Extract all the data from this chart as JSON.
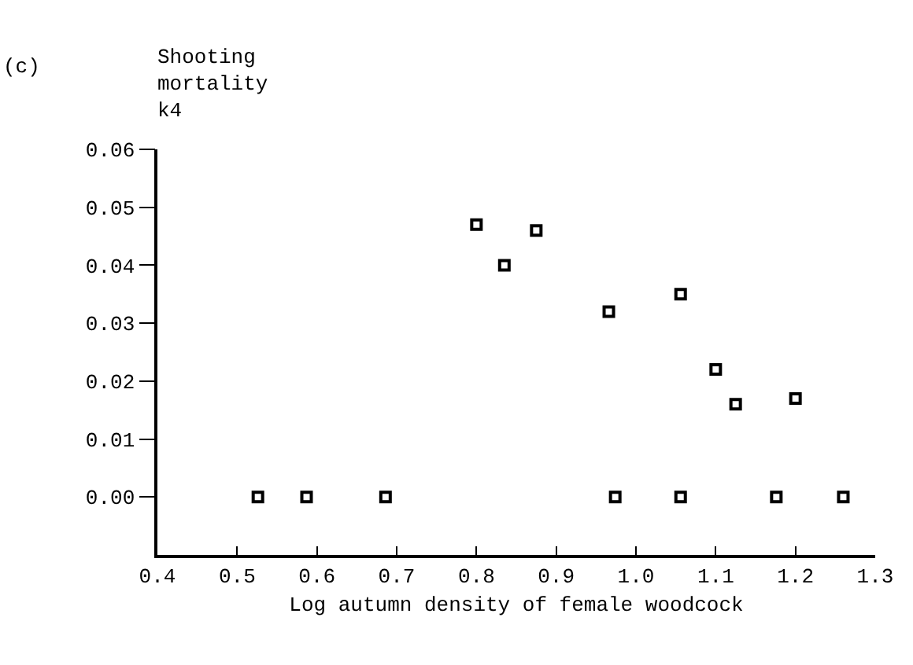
{
  "chart_data": {
    "type": "scatter",
    "title": "(c)",
    "ylabel": "Shooting mortality k4",
    "xlabel": "Log autumn density of female woodcock",
    "x": [
      0.526,
      0.587,
      0.686,
      0.8,
      0.835,
      0.875,
      0.966,
      0.974,
      1.056,
      1.056,
      1.1,
      1.125,
      1.176,
      1.2,
      1.26
    ],
    "values": [
      0,
      0,
      0,
      0.047,
      0.04,
      0.046,
      0.032,
      0,
      0.035,
      0,
      0.022,
      0.016,
      0,
      0.017,
      0
    ],
    "color": "#000000",
    "marker": "square",
    "grid": false,
    "legend": false,
    "xlim": [
      0.4,
      1.3
    ],
    "xticks": [
      {
        "value": 0.4,
        "label": "0.4"
      },
      {
        "value": 0.5,
        "label": "0.5"
      },
      {
        "value": 0.6,
        "label": "0.6"
      },
      {
        "value": 0.7,
        "label": "0.7"
      },
      {
        "value": 0.8,
        "label": "0.8"
      },
      {
        "value": 0.9,
        "label": "0.9"
      },
      {
        "value": 1.0,
        "label": "1.0"
      },
      {
        "value": 1.1,
        "label": "1.1"
      },
      {
        "value": 1.2,
        "label": "1.2"
      },
      {
        "value": 1.3,
        "label": "1.3"
      }
    ],
    "ylim": [
      -0.01,
      0.06
    ],
    "yticks": [
      {
        "value": 0,
        "label": "0.00"
      },
      {
        "value": 0.01,
        "label": "0.01"
      },
      {
        "value": 0.02,
        "label": "0.02"
      },
      {
        "value": 0.03,
        "label": "0.03"
      },
      {
        "value": 0.04,
        "label": "0.04"
      },
      {
        "value": 0.05,
        "label": "0.05"
      },
      {
        "value": 0.06,
        "label": "0.06"
      }
    ]
  }
}
